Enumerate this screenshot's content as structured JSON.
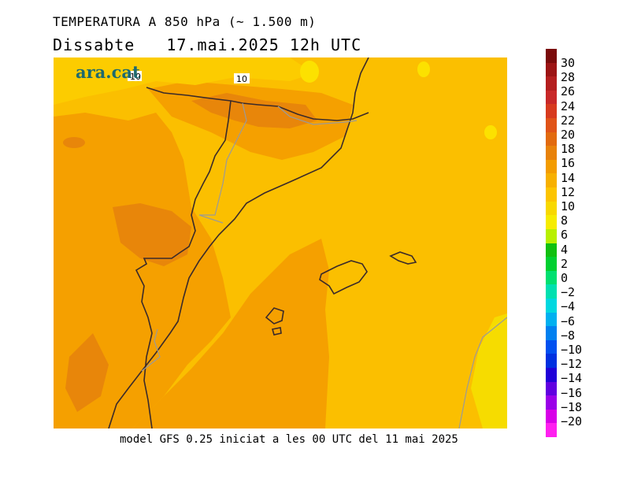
{
  "header": {
    "title": "TEMPERATURA A 850 hPa (~ 1.500 m)",
    "day": "Dissabte",
    "datetime": "17.mai.2025 12h UTC"
  },
  "logo": {
    "text": "ara.cat"
  },
  "footer": {
    "text": "model GFS 0.25 iniciat a les 00 UTC del 11 mai 2025"
  },
  "map": {
    "contour_labels": [
      "10",
      "10"
    ]
  },
  "legend": {
    "ticks": [
      "30",
      "28",
      "26",
      "24",
      "22",
      "20",
      "18",
      "16",
      "14",
      "12",
      "10",
      "8",
      "6",
      "4",
      "2",
      "0",
      "−2",
      "−4",
      "−6",
      "−8",
      "−10",
      "−12",
      "−14",
      "−16",
      "−18",
      "−20"
    ],
    "colors": [
      "#7a0a0a",
      "#9c1414",
      "#b41e1e",
      "#c82828",
      "#d73a1e",
      "#e05318",
      "#e26a0e",
      "#e8820a",
      "#f39c00",
      "#f7b000",
      "#fcc400",
      "#f8d800",
      "#f6ec00",
      "#b8f000",
      "#10c010",
      "#00d030",
      "#00e070",
      "#00e0b0",
      "#00d8e0",
      "#00b0f0",
      "#0080f0",
      "#0050f0",
      "#0030e0",
      "#2000d8",
      "#6000e0",
      "#9a00e8",
      "#d800e8",
      "#ff20f0"
    ]
  }
}
